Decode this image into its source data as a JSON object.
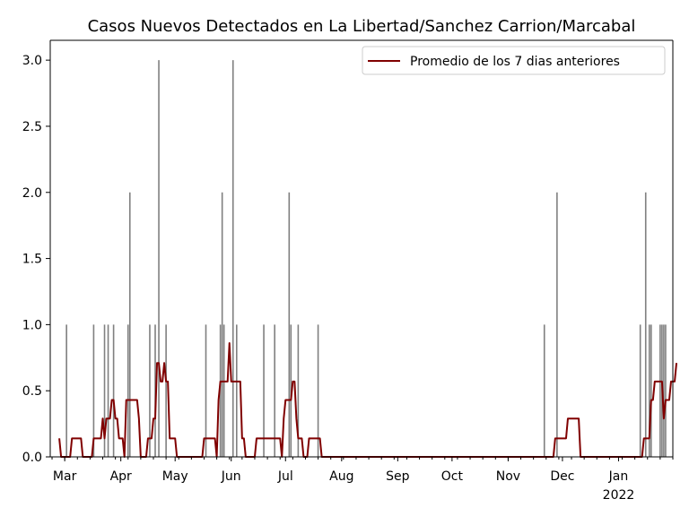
{
  "chart_data": {
    "type": "bar",
    "title": "Casos Nuevos Detectados en La Libertad/Sanchez Carrion/Marcabal",
    "xlabel": "",
    "ylabel": "",
    "ylim": [
      0,
      3.15
    ],
    "xlim": [
      "2021-02-21",
      "2022-01-31"
    ],
    "y_ticks": [
      {
        "value": 0.0,
        "label": "0.0"
      },
      {
        "value": 0.5,
        "label": "0.5"
      },
      {
        "value": 1.0,
        "label": "1.0"
      },
      {
        "value": 1.5,
        "label": "1.5"
      },
      {
        "value": 2.0,
        "label": "2.0"
      },
      {
        "value": 2.5,
        "label": "2.5"
      },
      {
        "value": 3.0,
        "label": "3.0"
      }
    ],
    "x_ticks": [
      {
        "date": "2021-03-01",
        "label": "Mar",
        "sublabel": ""
      },
      {
        "date": "2021-04-01",
        "label": "Apr",
        "sublabel": ""
      },
      {
        "date": "2021-05-01",
        "label": "May",
        "sublabel": ""
      },
      {
        "date": "2021-06-01",
        "label": "Jun",
        "sublabel": ""
      },
      {
        "date": "2021-07-01",
        "label": "Jul",
        "sublabel": ""
      },
      {
        "date": "2021-08-01",
        "label": "Aug",
        "sublabel": ""
      },
      {
        "date": "2021-09-01",
        "label": "Sep",
        "sublabel": ""
      },
      {
        "date": "2021-10-01",
        "label": "Oct",
        "sublabel": ""
      },
      {
        "date": "2021-11-01",
        "label": "Nov",
        "sublabel": ""
      },
      {
        "date": "2021-12-01",
        "label": "Dec",
        "sublabel": ""
      },
      {
        "date": "2022-01-01",
        "label": "Jan",
        "sublabel": "2022"
      }
    ],
    "bars": {
      "color": "#808080",
      "points": [
        {
          "date": "2021-03-02",
          "value": 1
        },
        {
          "date": "2021-03-17",
          "value": 1
        },
        {
          "date": "2021-03-23",
          "value": 1
        },
        {
          "date": "2021-03-25",
          "value": 1
        },
        {
          "date": "2021-03-28",
          "value": 1
        },
        {
          "date": "2021-04-05",
          "value": 1
        },
        {
          "date": "2021-04-06",
          "value": 2
        },
        {
          "date": "2021-04-17",
          "value": 1
        },
        {
          "date": "2021-04-20",
          "value": 1
        },
        {
          "date": "2021-04-22",
          "value": 3
        },
        {
          "date": "2021-04-26",
          "value": 1
        },
        {
          "date": "2021-05-18",
          "value": 1
        },
        {
          "date": "2021-05-26",
          "value": 1
        },
        {
          "date": "2021-05-27",
          "value": 2
        },
        {
          "date": "2021-05-28",
          "value": 1
        },
        {
          "date": "2021-06-02",
          "value": 3
        },
        {
          "date": "2021-06-04",
          "value": 1
        },
        {
          "date": "2021-06-19",
          "value": 1
        },
        {
          "date": "2021-06-25",
          "value": 1
        },
        {
          "date": "2021-07-03",
          "value": 2
        },
        {
          "date": "2021-07-04",
          "value": 1
        },
        {
          "date": "2021-07-08",
          "value": 1
        },
        {
          "date": "2021-07-19",
          "value": 1
        },
        {
          "date": "2021-11-21",
          "value": 1
        },
        {
          "date": "2021-11-28",
          "value": 2
        },
        {
          "date": "2022-01-13",
          "value": 1
        },
        {
          "date": "2022-01-16",
          "value": 2
        },
        {
          "date": "2022-01-18",
          "value": 1
        },
        {
          "date": "2022-01-19",
          "value": 1
        },
        {
          "date": "2022-01-24",
          "value": 1
        },
        {
          "date": "2022-01-25",
          "value": 1
        },
        {
          "date": "2022-01-26",
          "value": 1
        },
        {
          "date": "2022-01-27",
          "value": 1
        }
      ]
    },
    "series": [
      {
        "name": "Promedio de los 7 dias anteriores",
        "color": "#800000",
        "daily_values": {
          "start_date": "2021-02-26",
          "values": [
            0.14,
            0,
            0,
            0,
            0,
            0,
            0,
            0.14,
            0.14,
            0.14,
            0.14,
            0.14,
            0.14,
            0,
            0,
            0,
            0,
            0,
            0,
            0.14,
            0.14,
            0.14,
            0.14,
            0.14,
            0.29,
            0.14,
            0.29,
            0.29,
            0.29,
            0.43,
            0.43,
            0.29,
            0.29,
            0.14,
            0.14,
            0.14,
            0,
            0.43,
            0.43,
            0.43,
            0.43,
            0.43,
            0.43,
            0.43,
            0.29,
            0,
            0,
            0,
            0,
            0.14,
            0.14,
            0.14,
            0.29,
            0.29,
            0.71,
            0.71,
            0.57,
            0.57,
            0.71,
            0.57,
            0.57,
            0.14,
            0.14,
            0.14,
            0.14,
            0,
            0,
            0,
            0,
            0,
            0,
            0,
            0,
            0,
            0,
            0,
            0,
            0,
            0,
            0,
            0.14,
            0.14,
            0.14,
            0.14,
            0.14,
            0.14,
            0.14,
            0,
            0.43,
            0.57,
            0.57,
            0.57,
            0.57,
            0.57,
            0.86,
            0.57,
            0.57,
            0.57,
            0.57,
            0.57,
            0.57,
            0.14,
            0.14,
            0,
            0,
            0,
            0,
            0,
            0,
            0.14,
            0.14,
            0.14,
            0.14,
            0.14,
            0.14,
            0.14,
            0.14,
            0.14,
            0.14,
            0.14,
            0.14,
            0.14,
            0.14,
            0,
            0.29,
            0.43,
            0.43,
            0.43,
            0.43,
            0.57,
            0.57,
            0.29,
            0.14,
            0.14,
            0.14,
            0,
            0,
            0,
            0.14,
            0.14,
            0.14,
            0.14,
            0.14,
            0.14,
            0.14,
            0,
            0,
            0,
            0,
            0,
            0,
            0,
            0,
            0,
            0,
            0,
            0,
            0,
            0,
            0,
            0,
            0,
            0,
            0,
            0,
            0,
            0,
            0,
            0,
            0,
            0,
            0,
            0,
            0,
            0,
            0,
            0,
            0,
            0,
            0,
            0,
            0,
            0,
            0,
            0,
            0,
            0,
            0,
            0,
            0,
            0,
            0,
            0,
            0,
            0,
            0,
            0,
            0,
            0,
            0,
            0,
            0,
            0,
            0,
            0,
            0,
            0,
            0,
            0,
            0,
            0,
            0,
            0,
            0,
            0,
            0,
            0,
            0,
            0,
            0,
            0,
            0,
            0,
            0,
            0,
            0,
            0,
            0,
            0,
            0,
            0,
            0,
            0,
            0,
            0,
            0,
            0,
            0,
            0,
            0,
            0,
            0,
            0,
            0,
            0,
            0,
            0,
            0,
            0,
            0,
            0,
            0,
            0,
            0,
            0,
            0,
            0,
            0,
            0,
            0,
            0,
            0,
            0,
            0,
            0,
            0,
            0,
            0,
            0,
            0,
            0,
            0,
            0,
            0,
            0.14,
            0.14,
            0.14,
            0.14,
            0.14,
            0.14,
            0.14,
            0.29,
            0.29,
            0.29,
            0.29,
            0.29,
            0.29,
            0.29,
            0,
            0,
            0,
            0,
            0,
            0,
            0,
            0,
            0,
            0,
            0,
            0,
            0,
            0,
            0,
            0,
            0,
            0,
            0,
            0,
            0,
            0,
            0,
            0,
            0,
            0,
            0,
            0,
            0,
            0,
            0,
            0,
            0,
            0,
            0,
            0.14,
            0.14,
            0.14,
            0.14,
            0.43,
            0.43,
            0.57,
            0.57,
            0.57,
            0.57,
            0.57,
            0.29,
            0.43,
            0.43,
            0.43,
            0.57,
            0.57,
            0.57,
            0.71
          ]
        }
      }
    ],
    "legend": {
      "position": "upper right",
      "label": "Promedio de los 7 dias anteriores"
    },
    "grid": false
  }
}
